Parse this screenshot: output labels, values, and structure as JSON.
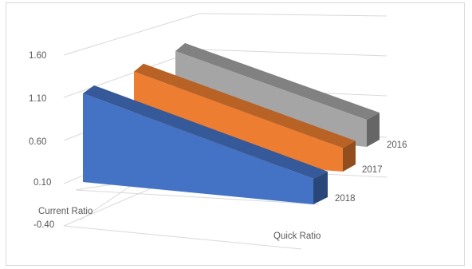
{
  "chart_data": {
    "type": "bar",
    "subtype": "3d-area",
    "title": "",
    "categories": [
      "Current Ratio",
      "Quick Ratio"
    ],
    "series": [
      {
        "name": "2016",
        "values": [
          1.62,
          0.75
        ],
        "color": "#a5a5a5"
      },
      {
        "name": "2017",
        "values": [
          1.55,
          0.48
        ],
        "color": "#ed7d31"
      },
      {
        "name": "2018",
        "values": [
          1.42,
          0.45
        ],
        "color": "#4472c4"
      }
    ],
    "y_ticks": [
      "1.60",
      "1.10",
      "0.60",
      "0.10",
      "-0.40"
    ],
    "ylim": [
      -0.4,
      1.6
    ],
    "grid": true,
    "legend": "none"
  }
}
